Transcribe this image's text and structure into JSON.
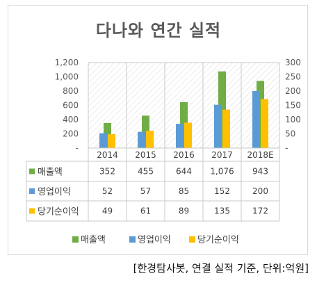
{
  "chart_data": {
    "type": "bar",
    "title": "다나와 연간 실적",
    "categories": [
      "2014",
      "2015",
      "2016",
      "2017",
      "2018E"
    ],
    "series": [
      {
        "name": "매출액",
        "axis": "left",
        "color": "#70ad47",
        "values": [
          352,
          455,
          644,
          1076,
          943
        ],
        "labels": [
          "352",
          "455",
          "644",
          "1,076",
          "943"
        ]
      },
      {
        "name": "영업이익",
        "axis": "right",
        "color": "#5b9bd5",
        "values": [
          52,
          57,
          85,
          152,
          200
        ],
        "labels": [
          "52",
          "57",
          "85",
          "152",
          "200"
        ]
      },
      {
        "name": "당기순이익",
        "axis": "right",
        "color": "#ffc000",
        "values": [
          49,
          61,
          89,
          135,
          172
        ],
        "labels": [
          "49",
          "61",
          "89",
          "135",
          "172"
        ]
      }
    ],
    "y_left": {
      "min": 0,
      "max": 1200,
      "ticks": [
        "-",
        "200",
        "400",
        "600",
        "800",
        "1,000",
        "1,200"
      ]
    },
    "y_right": {
      "min": 0,
      "max": 300,
      "ticks": [
        "-",
        "50",
        "100",
        "150",
        "200",
        "250",
        "300"
      ]
    },
    "data_table": true,
    "legend": "bottom"
  },
  "source": "[한경탐사봇, 연결 실적 기준, 단위:억원]"
}
